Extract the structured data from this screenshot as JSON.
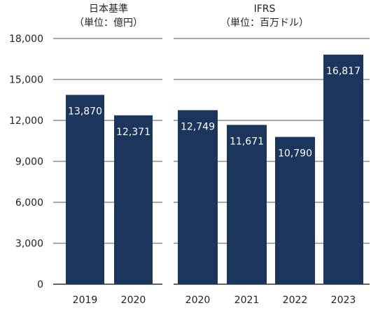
{
  "chart_data": {
    "type": "bar",
    "ylim": [
      0,
      18000
    ],
    "yticks": [
      0,
      3000,
      6000,
      9000,
      12000,
      15000,
      18000
    ],
    "ytick_labels": [
      "0",
      "3,000",
      "6,000",
      "9,000",
      "12,000",
      "15,000",
      "18,000"
    ],
    "grid": true,
    "bar_color": "#1b355d",
    "groups": [
      {
        "title": "日本基準",
        "subtitle": "（単位：億円）",
        "categories": [
          "2019",
          "2020"
        ],
        "values": [
          13870,
          12371
        ],
        "value_labels": [
          "13,870",
          "12,371"
        ]
      },
      {
        "title": "IFRS",
        "subtitle": "（単位：百万ドル）",
        "categories": [
          "2020",
          "2021",
          "2022",
          "2023"
        ],
        "values": [
          12749,
          11671,
          10790,
          16817
        ],
        "value_labels": [
          "12,749",
          "11,671",
          "10,790",
          "16,817"
        ]
      }
    ]
  }
}
